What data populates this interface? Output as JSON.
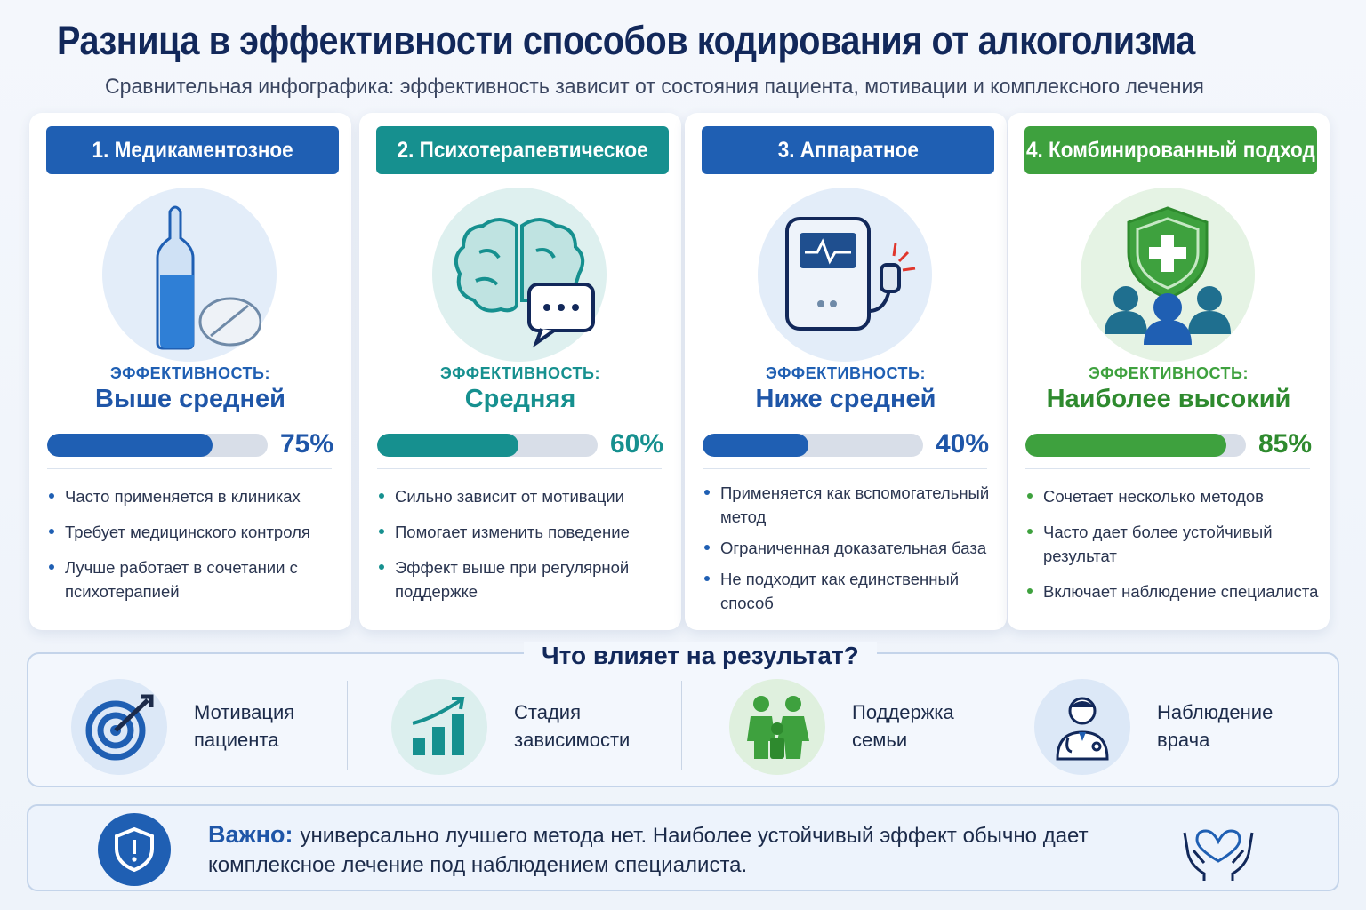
{
  "title": "Разница в эффективности способов кодирования от алкоголизма",
  "subtitle": "Сравнительная инфографика: эффективность зависит от состояния пациента, мотивации и комплексного лечения",
  "eff_label": "ЭФФЕКТИВНОСТЬ:",
  "cards": [
    {
      "header": "1. Медикаментозное",
      "color": "#1f5fb3",
      "icon": "ampoule-pill-icon",
      "effectiveness": "Выше средней",
      "percent_label": "75%",
      "percent": 75,
      "bullets": [
        "Часто применяется в клиниках",
        "Требует медицинского контроля",
        "Лучше работает в сочетании с психотерапией"
      ]
    },
    {
      "header": "2. Психотерапевтическое",
      "color": "#16908f",
      "icon": "brain-chat-icon",
      "effectiveness": "Средняя",
      "percent_label": "60%",
      "percent": 60,
      "bullets": [
        "Сильно зависит от мотивации",
        "Помогает изменить поведение",
        "Эффект выше при регулярной поддержке"
      ]
    },
    {
      "header": "3. Аппаратное",
      "color": "#1f5fb3",
      "icon": "device-probe-icon",
      "effectiveness": "Ниже средней",
      "percent_label": "40%",
      "percent": 40,
      "bullets": [
        "Применяется как вспомогательный метод",
        "Ограниченная доказательная база",
        "Не подходит как единственный способ"
      ]
    },
    {
      "header": "4. Комбинированный подход",
      "color": "#3ea13e",
      "icon": "shield-people-icon",
      "effectiveness": "Наиболее высокий",
      "percent_label": "85%",
      "percent": 85,
      "bullets": [
        "Сочетает несколько методов",
        "Часто дает более устойчивый результат",
        "Включает наблюдение специалиста"
      ]
    }
  ],
  "factors": {
    "title": "Что влияет на результат?",
    "items": [
      {
        "label": "Мотивация пациента",
        "icon": "target-icon"
      },
      {
        "label": "Стадия зависимости",
        "icon": "growth-chart-icon"
      },
      {
        "label": "Поддержка семьи",
        "icon": "family-icon"
      },
      {
        "label": "Наблюдение врача",
        "icon": "doctor-icon"
      }
    ]
  },
  "important": {
    "label": "Важно:",
    "text": "универсально лучшего метода нет. Наиболее устойчивый эффект обычно дает комплексное лечение под наблюдением специалиста.",
    "icon": "shield-alert-icon",
    "deco_icon": "hands-heart-icon"
  }
}
